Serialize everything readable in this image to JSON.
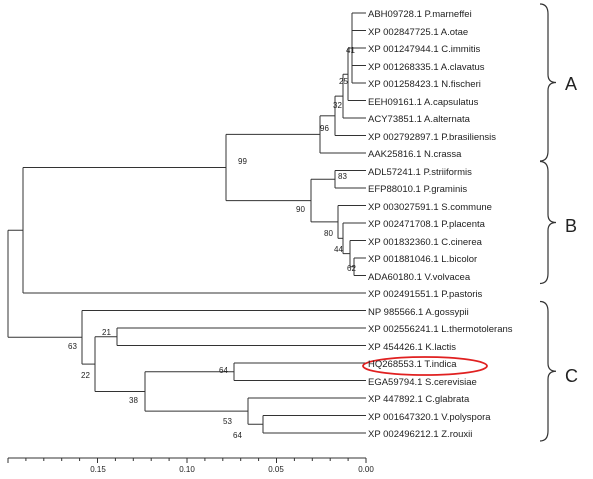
{
  "taxa": [
    "ABH09728.1 P.marneffei",
    "XP 002847725.1 A.otae",
    "XP 001247944.1 C.immitis",
    "XP 001268335.1 A.clavatus",
    "XP 001258423.1 N.fischeri",
    "EEH09161.1 A.capsulatus",
    "ACY73851.1 A.alternata",
    "XP 002792897.1 P.brasiliensis",
    "AAK25816.1 N.crassa",
    "ADL57241.1 P.striiformis",
    "EFP88010.1 P.graminis",
    "XP 003027591.1 S.commune",
    "XP 002471708.1 P.placenta",
    "XP 001832360.1 C.cinerea",
    "XP 001881046.1 L.bicolor",
    "ADA60180.1 V.volvacea",
    "XP 002491551.1 P.pastoris",
    "NP 985566.1 A.gossypii",
    "XP 002556241.1 L.thermotolerans",
    "XP 454426.1 K.lactis",
    "HQ268553.1 T.indica",
    "EGA59794.1 S.cerevisiae",
    "XP 447892.1 C.glabrata",
    "XP 001647320.1 V.polyspora",
    "XP 002496212.1 Z.rouxii"
  ],
  "highlighted_taxon": "HQ268553.1 T.indica",
  "bootstrap_values": [
    "41",
    "25",
    "32",
    "96",
    "99",
    "83",
    "90",
    "80",
    "44",
    "62",
    "21",
    "63",
    "22",
    "64",
    "38",
    "53",
    "64"
  ],
  "clades": [
    {
      "label": "A",
      "from_taxon": 0,
      "to_taxon": 8
    },
    {
      "label": "B",
      "from_taxon": 9,
      "to_taxon": 15
    },
    {
      "label": "C",
      "from_taxon": 17,
      "to_taxon": 24
    }
  ],
  "axis": {
    "tick_labels": [
      "0.15",
      "0.10",
      "0.05",
      "0.00"
    ],
    "tick_values": [
      0.15,
      0.1,
      0.05,
      0.0
    ],
    "range": [
      0.2,
      0.0
    ]
  }
}
